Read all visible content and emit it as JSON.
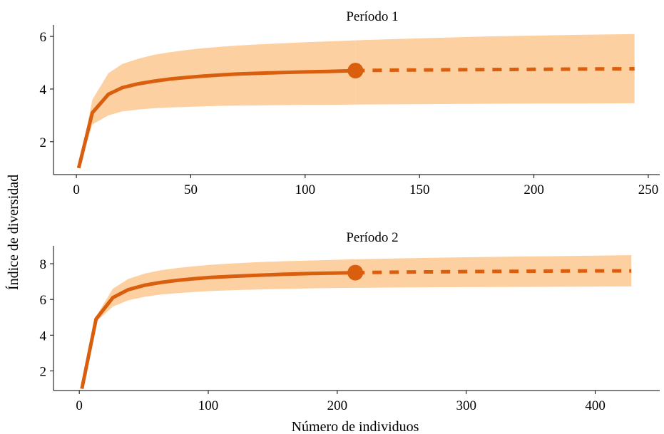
{
  "figure": {
    "ylabel": "Índice de diversidad",
    "xlabel": "Número de individuos",
    "colors": {
      "line": "#d95f0e",
      "band": "#fdd0a2"
    }
  },
  "chart_data": [
    {
      "type": "line",
      "title": "Período 1",
      "xlim": [
        -10,
        255
      ],
      "ylim": [
        0.75,
        6.3
      ],
      "xticks": [
        0,
        50,
        100,
        150,
        200,
        250
      ],
      "yticks": [
        2,
        4,
        6
      ],
      "observed_end": 122,
      "series": [
        {
          "kind": "interpolated",
          "x": [
            1,
            7,
            14,
            20,
            27,
            34,
            41,
            48,
            55,
            62,
            70,
            80,
            90,
            100,
            110,
            122
          ],
          "y": [
            1.0,
            3.1,
            3.8,
            4.05,
            4.2,
            4.3,
            4.38,
            4.44,
            4.49,
            4.53,
            4.57,
            4.6,
            4.63,
            4.65,
            4.67,
            4.7
          ],
          "lower": [
            1.0,
            2.65,
            3.0,
            3.15,
            3.22,
            3.27,
            3.3,
            3.32,
            3.34,
            3.36,
            3.37,
            3.38,
            3.39,
            3.4,
            3.4,
            3.41
          ],
          "upper": [
            1.0,
            3.6,
            4.6,
            4.95,
            5.15,
            5.3,
            5.4,
            5.48,
            5.55,
            5.6,
            5.65,
            5.7,
            5.74,
            5.78,
            5.81,
            5.85
          ]
        },
        {
          "kind": "extrapolated",
          "x": [
            122,
            140,
            160,
            180,
            200,
            220,
            244
          ],
          "y": [
            4.7,
            4.72,
            4.73,
            4.74,
            4.75,
            4.76,
            4.77
          ],
          "lower": [
            3.41,
            3.42,
            3.43,
            3.44,
            3.45,
            3.45,
            3.46
          ],
          "upper": [
            5.85,
            5.9,
            5.95,
            6.0,
            6.03,
            6.06,
            6.09
          ]
        }
      ]
    },
    {
      "type": "line",
      "title": "Período 2",
      "xlim": [
        -20,
        450
      ],
      "ylim": [
        0.9,
        8.8
      ],
      "xticks": [
        0,
        100,
        200,
        300,
        400
      ],
      "yticks": [
        2,
        4,
        6,
        8
      ],
      "observed_end": 214,
      "series": [
        {
          "kind": "interpolated",
          "x": [
            2,
            13,
            26,
            38,
            51,
            63,
            76,
            89,
            102,
            120,
            140,
            160,
            180,
            200,
            214
          ],
          "y": [
            1.0,
            4.9,
            6.1,
            6.55,
            6.8,
            6.95,
            7.07,
            7.16,
            7.23,
            7.3,
            7.36,
            7.41,
            7.45,
            7.48,
            7.5
          ],
          "lower": [
            1.0,
            4.75,
            5.6,
            5.95,
            6.15,
            6.27,
            6.35,
            6.42,
            6.47,
            6.52,
            6.56,
            6.59,
            6.62,
            6.64,
            6.65
          ],
          "upper": [
            1.0,
            5.05,
            6.6,
            7.15,
            7.45,
            7.63,
            7.76,
            7.86,
            7.94,
            8.02,
            8.09,
            8.14,
            8.18,
            8.22,
            8.25
          ]
        },
        {
          "kind": "extrapolated",
          "x": [
            214,
            250,
            300,
            350,
            400,
            428
          ],
          "y": [
            7.5,
            7.53,
            7.56,
            7.58,
            7.6,
            7.6
          ],
          "lower": [
            6.65,
            6.67,
            6.69,
            6.7,
            6.72,
            6.73
          ],
          "upper": [
            8.25,
            8.3,
            8.36,
            8.41,
            8.45,
            8.48
          ]
        }
      ]
    }
  ]
}
